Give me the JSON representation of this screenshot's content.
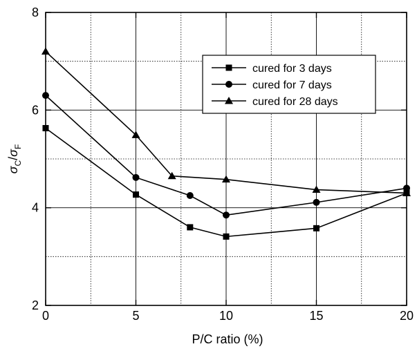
{
  "chart_data": {
    "type": "line",
    "title": "",
    "xlabel": "P/C ratio (%)",
    "ylabel": {
      "parts": [
        {
          "text": "σ",
          "sub": "C"
        },
        {
          "text": "/",
          "sub": ""
        },
        {
          "text": "σ",
          "sub": "F"
        }
      ]
    },
    "xlim": [
      0,
      20
    ],
    "ylim": [
      2,
      8
    ],
    "xticks": [
      0,
      5,
      10,
      15,
      20
    ],
    "yticks": [
      2,
      4,
      6,
      8
    ],
    "x_minor_grid": [
      2.5,
      7.5,
      12.5,
      17.5
    ],
    "y_minor_grid": [
      3,
      5,
      7
    ],
    "grid": true,
    "legend_position": "top-right",
    "series": [
      {
        "name": "cured for 3 days",
        "marker": "square",
        "x": [
          0,
          5,
          8,
          10,
          15,
          20
        ],
        "y": [
          5.63,
          4.27,
          3.6,
          3.41,
          3.58,
          4.3
        ]
      },
      {
        "name": "cured for 7 days",
        "marker": "circle",
        "x": [
          0,
          5,
          8,
          10,
          15,
          20
        ],
        "y": [
          6.3,
          4.62,
          4.25,
          3.85,
          4.11,
          4.4
        ]
      },
      {
        "name": "cured for 28 days",
        "marker": "triangle",
        "x": [
          0,
          5,
          7,
          10,
          15,
          20
        ],
        "y": [
          7.2,
          5.49,
          4.65,
          4.58,
          4.37,
          4.3
        ]
      }
    ]
  }
}
